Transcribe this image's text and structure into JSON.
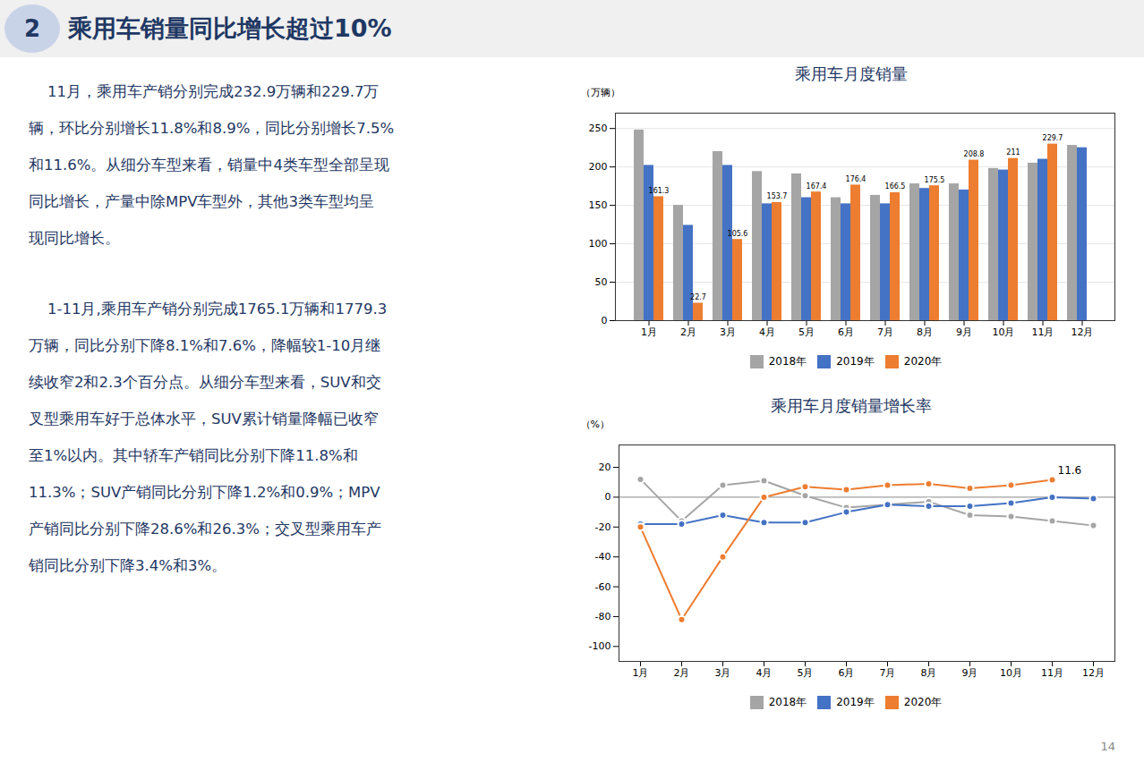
{
  "heading_number": "2",
  "heading": "乘用车销量同比增长超过10%",
  "page_number": "14",
  "body_text": [
    [
      "    11月，乘用车产销分别完成232.9万辆和229.7万",
      "辆，环比分别增长11.8%和8.9%，同比分别增长7.5%",
      "和11.6%。从细分车型来看，销量中4类车型全部呈现",
      "同比增长，产量中除MPV车型外，其他3类车型均呈",
      "现同比增长。"
    ],
    [
      "    1-11月,乘用车产销分别完成1765.1万辆和1779.3",
      "万辆，同比分别下降8.1%和7.6%，降幅较1-10月继",
      "续收窄2和2.3个百分点。从细分车型来看，SUV和交",
      "叉型乘用车好于总体水平，SUV累计销量降幅已收窄",
      "至1%以内。其中轿车产销同比分别下降11.8%和",
      "11.3%；SUV产销同比分别下降1.2%和0.9%；MPV",
      "产销同比分别下降28.6%和26.3%；交叉型乘用车产",
      "销同比分别下降3.4%和3%。"
    ]
  ],
  "chart_data": [
    {
      "type": "bar",
      "title": "乘用车月度销量",
      "y_label": "（万辆）",
      "categories": [
        "1月",
        "2月",
        "3月",
        "4月",
        "5月",
        "6月",
        "7月",
        "8月",
        "9月",
        "10月",
        "11月",
        "12月"
      ],
      "series": [
        {
          "name": "2018年",
          "color": "#a5a5a5",
          "values": [
            248,
            150,
            220,
            194,
            191,
            160,
            163,
            178,
            178,
            198,
            205,
            228
          ]
        },
        {
          "name": "2019年",
          "color": "#4472c4",
          "values": [
            202,
            124,
            202,
            152,
            160,
            152,
            152,
            172,
            170,
            196,
            210,
            225
          ]
        },
        {
          "name": "2020年",
          "color": "#ed7d31",
          "values": [
            161.3,
            22.7,
            105.6,
            153.7,
            167.4,
            176.4,
            166.5,
            175.5,
            208.8,
            211,
            229.7,
            null
          ],
          "data_labels": true
        }
      ],
      "ylim": [
        0,
        270
      ],
      "yticks": [
        0,
        50,
        100,
        150,
        200,
        250
      ],
      "grid": true,
      "legend": "bottom"
    },
    {
      "type": "line",
      "title": "乘用车月度销量增长率",
      "y_label": "（%）",
      "categories": [
        "1月",
        "2月",
        "3月",
        "4月",
        "5月",
        "6月",
        "7月",
        "8月",
        "9月",
        "10月",
        "11月",
        "12月"
      ],
      "series": [
        {
          "name": "2018年",
          "color": "#a5a5a5",
          "values": [
            12,
            -16,
            8,
            11,
            1,
            -7,
            -5,
            -3,
            -12,
            -13,
            -16,
            -19
          ]
        },
        {
          "name": "2019年",
          "color": "#4472c4",
          "values": [
            -18,
            -18,
            -12,
            -17,
            -17,
            -10,
            -5,
            -6,
            -6,
            -4,
            0,
            -1
          ]
        },
        {
          "name": "2020年",
          "color": "#ed7d31",
          "values": [
            -20,
            -82,
            -40,
            0,
            7,
            5,
            8,
            9,
            6,
            8,
            11.6,
            null
          ]
        }
      ],
      "annotations": [
        {
          "text": "11.6",
          "x": "11月",
          "y": 11.6
        }
      ],
      "ylim": [
        -110,
        35
      ],
      "yticks": [
        -100,
        -80,
        -60,
        -40,
        -20,
        0,
        20
      ],
      "grid": false,
      "marker": "circle",
      "legend": "bottom"
    }
  ]
}
